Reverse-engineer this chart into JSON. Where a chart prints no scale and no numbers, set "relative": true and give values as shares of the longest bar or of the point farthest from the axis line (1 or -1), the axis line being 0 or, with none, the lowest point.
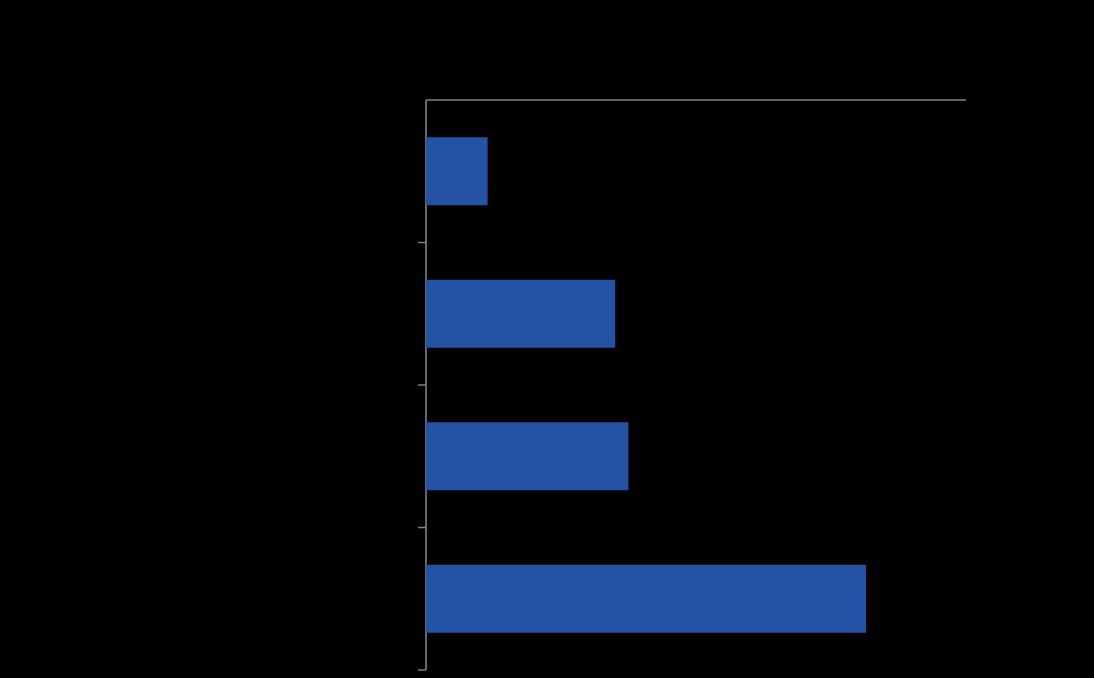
{
  "chart_data": {
    "type": "bar",
    "orientation": "horizontal",
    "relative": true,
    "categories": [
      null,
      null,
      null,
      null
    ],
    "values": [
      0.14,
      0.43,
      0.46,
      1
    ],
    "color": "#2452a4"
  }
}
